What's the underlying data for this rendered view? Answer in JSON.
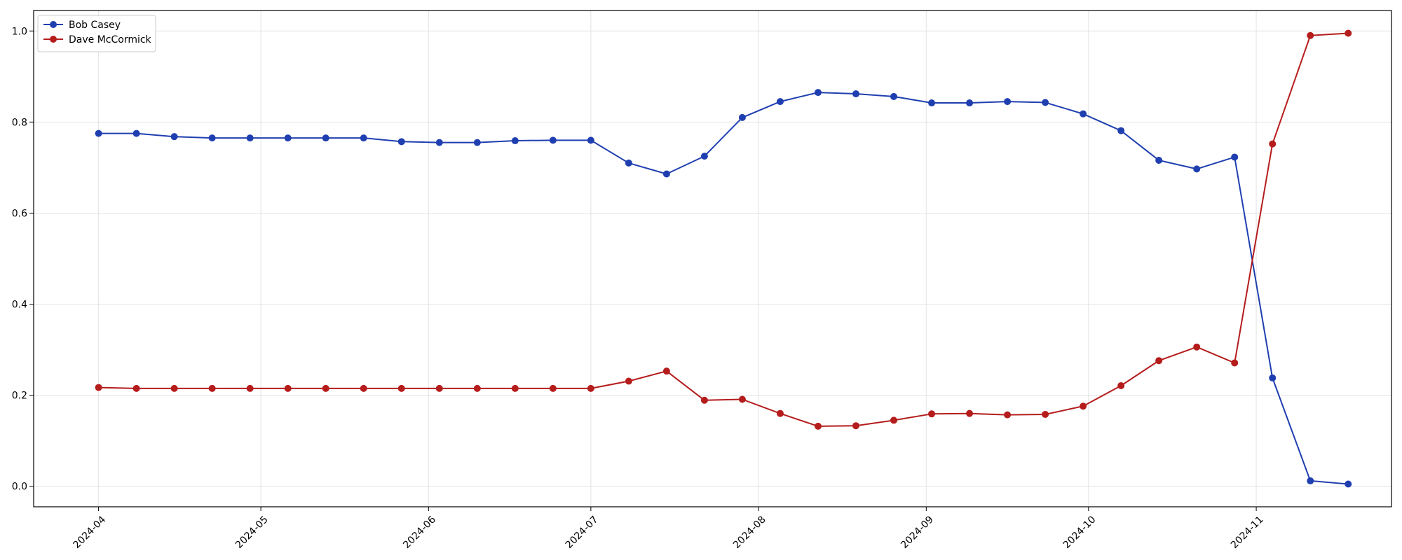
{
  "chart_data": {
    "type": "line",
    "title": "",
    "xlabel": "",
    "ylabel": "",
    "x_ticks": [
      "2024-04",
      "2024-05",
      "2024-06",
      "2024-07",
      "2024-08",
      "2024-09",
      "2024-10",
      "2024-11"
    ],
    "x_tick_dates": [
      "2024-04-01",
      "2024-05-01",
      "2024-06-01",
      "2024-07-01",
      "2024-08-01",
      "2024-09-01",
      "2024-10-01",
      "2024-11-01"
    ],
    "y_ticks": [
      "0.0",
      "0.2",
      "0.4",
      "0.6",
      "0.8",
      "1.0"
    ],
    "ylim": [
      -0.045,
      1.045
    ],
    "xlim": [
      "2024-03-20",
      "2024-11-26"
    ],
    "grid": true,
    "legend_position": "top-left",
    "x": [
      "2024-04-01",
      "2024-04-08",
      "2024-04-15",
      "2024-04-22",
      "2024-04-29",
      "2024-05-06",
      "2024-05-13",
      "2024-05-20",
      "2024-05-27",
      "2024-06-03",
      "2024-06-10",
      "2024-06-17",
      "2024-06-24",
      "2024-07-01",
      "2024-07-08",
      "2024-07-15",
      "2024-07-22",
      "2024-07-29",
      "2024-08-05",
      "2024-08-12",
      "2024-08-19",
      "2024-08-26",
      "2024-09-02",
      "2024-09-09",
      "2024-09-16",
      "2024-09-23",
      "2024-09-30",
      "2024-10-07",
      "2024-10-14",
      "2024-10-21",
      "2024-10-28",
      "2024-11-04",
      "2024-11-11",
      "2024-11-18"
    ],
    "series": [
      {
        "name": "Bob Casey",
        "color": "#1f3fb0",
        "values": [
          0.775,
          0.775,
          0.768,
          0.765,
          0.765,
          0.765,
          0.765,
          0.765,
          0.757,
          0.755,
          0.755,
          0.759,
          0.76,
          0.76,
          0.71,
          0.686,
          0.725,
          0.81,
          0.845,
          0.865,
          0.862,
          0.856,
          0.842,
          0.842,
          0.845,
          0.843,
          0.818,
          0.781,
          0.716,
          0.697,
          0.723,
          0.238,
          0.012,
          0.005
        ]
      },
      {
        "name": "Dave McCormick",
        "color": "#b51c1c",
        "values": [
          0.217,
          0.215,
          0.215,
          0.215,
          0.215,
          0.215,
          0.215,
          0.215,
          0.215,
          0.215,
          0.215,
          0.215,
          0.215,
          0.215,
          0.231,
          0.253,
          0.189,
          0.191,
          0.16,
          0.132,
          0.133,
          0.145,
          0.159,
          0.16,
          0.157,
          0.158,
          0.176,
          0.221,
          0.276,
          0.306,
          0.271,
          0.752,
          0.99,
          0.995
        ]
      }
    ]
  }
}
